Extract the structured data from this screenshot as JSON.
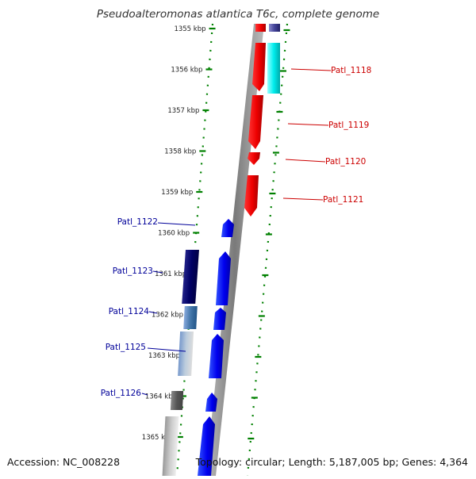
{
  "title": "Pseudoalteromonas atlantica T6c, complete genome",
  "footer": {
    "accession": "Accession: NC_008228",
    "topology": "Topology: circular; Length: 5,187,005 bp; Genes: 4,364"
  },
  "colors": {
    "forward_strand": "#ff0000",
    "reverse_strand": "#0000ff",
    "forward_label": "#cc0000",
    "reverse_label": "#000099",
    "tick": "#008000",
    "backbone": "#888888"
  },
  "ruler": {
    "unit": "kbp",
    "ticks": [
      {
        "kbp": 1355,
        "label": "1355 kbp"
      },
      {
        "kbp": 1356,
        "label": "1356 kbp"
      },
      {
        "kbp": 1357,
        "label": "1357 kbp"
      },
      {
        "kbp": 1358,
        "label": "1358 kbp"
      },
      {
        "kbp": 1359,
        "label": "1359 kbp"
      },
      {
        "kbp": 1360,
        "label": "1360 kbp"
      },
      {
        "kbp": 1361,
        "label": "1361 kbp"
      },
      {
        "kbp": 1362,
        "label": "1362 kbp"
      },
      {
        "kbp": 1363,
        "label": "1363 kbp"
      },
      {
        "kbp": 1364,
        "label": "1364 kbp"
      },
      {
        "kbp": 1365,
        "label": "1365 kbp"
      }
    ]
  },
  "genes": {
    "forward": [
      "Patl_1118",
      "Patl_1119",
      "Patl_1120",
      "Patl_1121"
    ],
    "reverse": [
      "Patl_1122",
      "Patl_1123",
      "Patl_1124",
      "Patl_1125",
      "Patl_1126"
    ]
  }
}
